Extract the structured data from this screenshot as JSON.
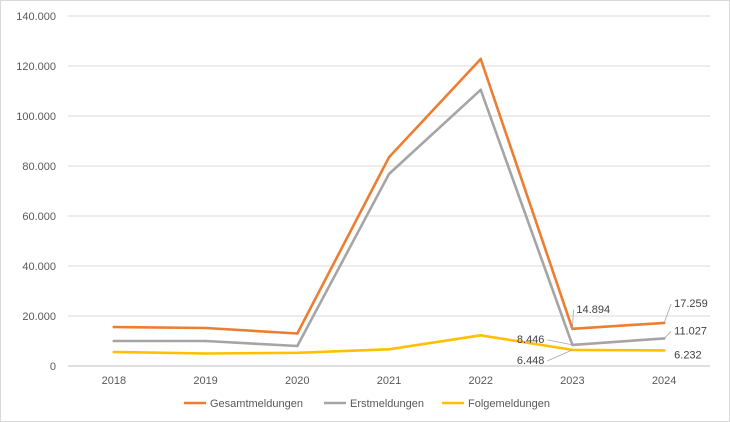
{
  "chart_data": {
    "type": "line",
    "title": "",
    "xlabel": "",
    "ylabel": "",
    "categories": [
      "2018",
      "2019",
      "2020",
      "2021",
      "2022",
      "2023",
      "2024"
    ],
    "ylim": [
      0,
      140000
    ],
    "y_ticks": [
      0,
      20000,
      40000,
      60000,
      80000,
      100000,
      120000,
      140000
    ],
    "y_tick_labels": [
      "0",
      "20.000",
      "40.000",
      "60.000",
      "80.000",
      "100.000",
      "120.000",
      "140.000"
    ],
    "grid": "horizontal",
    "legend": "bottom",
    "series": [
      {
        "name": "Gesamtmeldungen",
        "color": "#ED7D31",
        "values": [
          15600,
          15200,
          13000,
          83500,
          122800,
          14894,
          17259
        ]
      },
      {
        "name": "Erstmeldungen",
        "color": "#A5A5A5",
        "values": [
          10000,
          10000,
          8000,
          76800,
          110500,
          8446,
          11027
        ]
      },
      {
        "name": "Folgemeldungen",
        "color": "#FFC000",
        "values": [
          5600,
          5000,
          5300,
          6700,
          12300,
          6448,
          6232
        ]
      }
    ],
    "data_labels": [
      {
        "series": 0,
        "index": 5,
        "text": "14.894"
      },
      {
        "series": 0,
        "index": 6,
        "text": "17.259"
      },
      {
        "series": 1,
        "index": 5,
        "text": "8.446"
      },
      {
        "series": 1,
        "index": 6,
        "text": "11.027"
      },
      {
        "series": 2,
        "index": 5,
        "text": "6.448"
      },
      {
        "series": 2,
        "index": 6,
        "text": "6.232"
      }
    ]
  }
}
